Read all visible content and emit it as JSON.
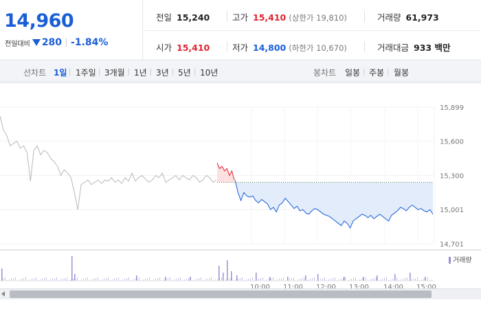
{
  "summary": {
    "price": "14,960",
    "change_label": "전일대비",
    "change_amount": "280",
    "change_rate": "-1.84%"
  },
  "stats": {
    "prev_close": {
      "label": "전일",
      "value": "15,240"
    },
    "high": {
      "label": "고가",
      "value": "15,410",
      "sub": "(상한가 19,810)"
    },
    "volume": {
      "label": "거래량",
      "value": "61,973"
    },
    "open": {
      "label": "시가",
      "value": "15,410"
    },
    "low": {
      "label": "저가",
      "value": "14,800",
      "sub": "(하한가 10,670)"
    },
    "amount": {
      "label": "거래대금",
      "value": "933 백만"
    }
  },
  "toolbar": {
    "line_chart_title": "선차트",
    "periods": [
      "1일",
      "1주일",
      "3개월",
      "1년",
      "3년",
      "5년",
      "10년"
    ],
    "active_period": "1일",
    "candle_chart_title": "봉차트",
    "candles": [
      "일봉",
      "주봉",
      "월봉"
    ]
  },
  "chart_data": {
    "type": "line",
    "y_ticks": [
      "15,899",
      "15,600",
      "15,300",
      "15,001",
      "14,701"
    ],
    "ylim": [
      14701,
      15899
    ],
    "prev_close_line": 15240,
    "volume_legend": "거래량",
    "x_ticks": [
      "10:00",
      "11:00",
      "12:00",
      "13:00",
      "14:00",
      "15:00"
    ],
    "series": [
      {
        "values": [
          15820,
          15700,
          15650,
          15560,
          15580,
          15600,
          15540,
          15560,
          15500,
          15250,
          15520,
          15560,
          15480,
          15520,
          15500,
          15450,
          15420,
          15380,
          15300,
          15350,
          15320,
          15280,
          15150,
          15000,
          15220,
          15240,
          15260,
          15220,
          15240,
          15260,
          15230,
          15260,
          15250,
          15280,
          15240,
          15260,
          15230,
          15280,
          15250,
          15320,
          15250,
          15280,
          15300,
          15270,
          15240,
          15260,
          15300,
          15280,
          15320,
          15240,
          15260,
          15280,
          15300,
          15260,
          15300,
          15280,
          15260,
          15300,
          15280,
          15240,
          15260,
          15300,
          15280,
          15240,
          15260
        ]
      },
      {
        "values": [
          15410,
          15360,
          15380,
          15340,
          15360,
          15300,
          15340,
          15260
        ]
      },
      {
        "values": [
          15260,
          15150,
          15080,
          15150,
          15120,
          15110,
          15120,
          15080,
          15060,
          15090,
          15070,
          15050,
          15000,
          15020,
          14980,
          15040,
          15060,
          15100,
          15070,
          15040,
          15010,
          15030,
          14990,
          15000,
          14970,
          14960,
          14990,
          15010,
          15000,
          14980,
          14960,
          14950,
          14940,
          14920,
          14900,
          14880,
          14860,
          14900,
          14880,
          14840,
          14900,
          14920,
          14940,
          14960,
          14950,
          14930,
          14950,
          14920,
          14940,
          14960,
          14940,
          14920,
          14900,
          14950,
          14970,
          14990,
          15020,
          15010,
          14990,
          15020,
          15040,
          15020,
          15000,
          15010,
          14990,
          14980,
          15000,
          14960
        ]
      }
    ]
  }
}
